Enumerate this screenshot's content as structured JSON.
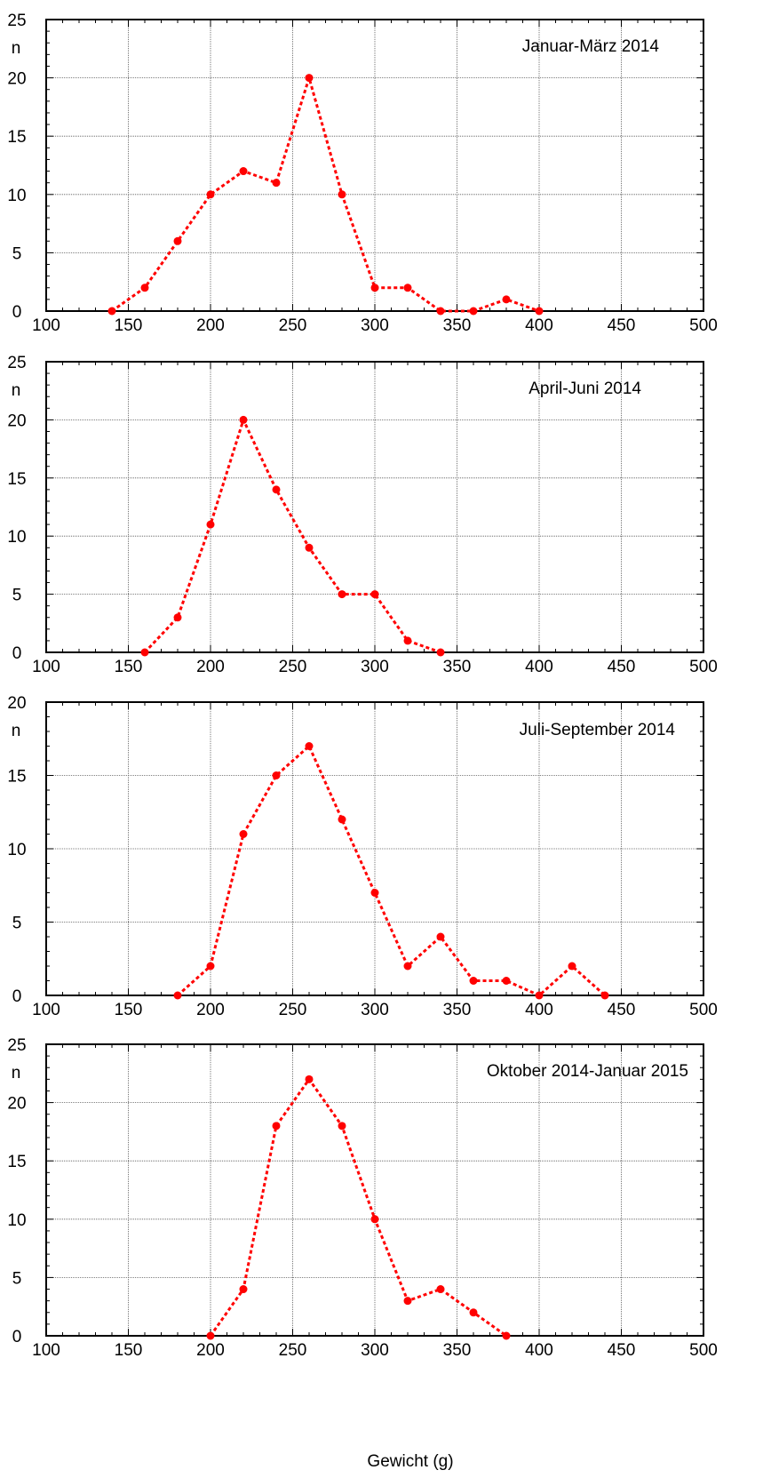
{
  "figure": {
    "xlabel": "Gewicht (g)"
  },
  "colors": {
    "series": "#ff0000",
    "grid": "#555555",
    "axis": "#000000"
  },
  "chart_data": [
    {
      "type": "line",
      "title": "Januar-März 2014",
      "ylabel": "n",
      "xlabel": "",
      "xlim": [
        100,
        500
      ],
      "ylim": [
        0,
        25
      ],
      "xticks": [
        100,
        150,
        200,
        250,
        300,
        350,
        400,
        450,
        500
      ],
      "yticks": [
        0,
        5,
        10,
        15,
        20,
        25
      ],
      "grid": true,
      "series": [
        {
          "x": [
            140,
            160,
            180,
            200,
            220,
            240,
            260,
            280,
            300,
            320,
            340,
            360,
            380,
            400
          ],
          "y": [
            0,
            2,
            6,
            10,
            12,
            11,
            20,
            10,
            2,
            2,
            0,
            0,
            1,
            0
          ]
        }
      ]
    },
    {
      "type": "line",
      "title": "April-Juni 2014",
      "ylabel": "n",
      "xlabel": "",
      "xlim": [
        100,
        500
      ],
      "ylim": [
        0,
        25
      ],
      "xticks": [
        100,
        150,
        200,
        250,
        300,
        350,
        400,
        450,
        500
      ],
      "yticks": [
        0,
        5,
        10,
        15,
        20,
        25
      ],
      "grid": true,
      "series": [
        {
          "x": [
            160,
            180,
            200,
            220,
            240,
            260,
            280,
            300,
            320,
            340
          ],
          "y": [
            0,
            3,
            11,
            20,
            14,
            9,
            5,
            5,
            1,
            0
          ]
        }
      ]
    },
    {
      "type": "line",
      "title": "Juli-September 2014",
      "ylabel": "n",
      "xlabel": "",
      "xlim": [
        100,
        500
      ],
      "ylim": [
        0,
        20
      ],
      "xticks": [
        100,
        150,
        200,
        250,
        300,
        350,
        400,
        450,
        500
      ],
      "yticks": [
        0,
        5,
        10,
        15,
        20
      ],
      "grid": true,
      "series": [
        {
          "x": [
            180,
            200,
            220,
            240,
            260,
            280,
            300,
            320,
            340,
            360,
            380,
            400,
            420,
            440
          ],
          "y": [
            0,
            2,
            11,
            15,
            17,
            12,
            7,
            2,
            4,
            1,
            1,
            0,
            2,
            0
          ]
        }
      ]
    },
    {
      "type": "line",
      "title": "Oktober 2014-Januar 2015",
      "ylabel": "n",
      "xlabel": "Gewicht (g)",
      "xlim": [
        100,
        500
      ],
      "ylim": [
        0,
        25
      ],
      "xticks": [
        100,
        150,
        200,
        250,
        300,
        350,
        400,
        450,
        500
      ],
      "yticks": [
        0,
        5,
        10,
        15,
        20,
        25
      ],
      "grid": true,
      "series": [
        {
          "x": [
            200,
            220,
            240,
            260,
            280,
            300,
            320,
            340,
            360,
            380
          ],
          "y": [
            0,
            4,
            18,
            22,
            18,
            10,
            3,
            4,
            2,
            0
          ]
        }
      ]
    }
  ]
}
